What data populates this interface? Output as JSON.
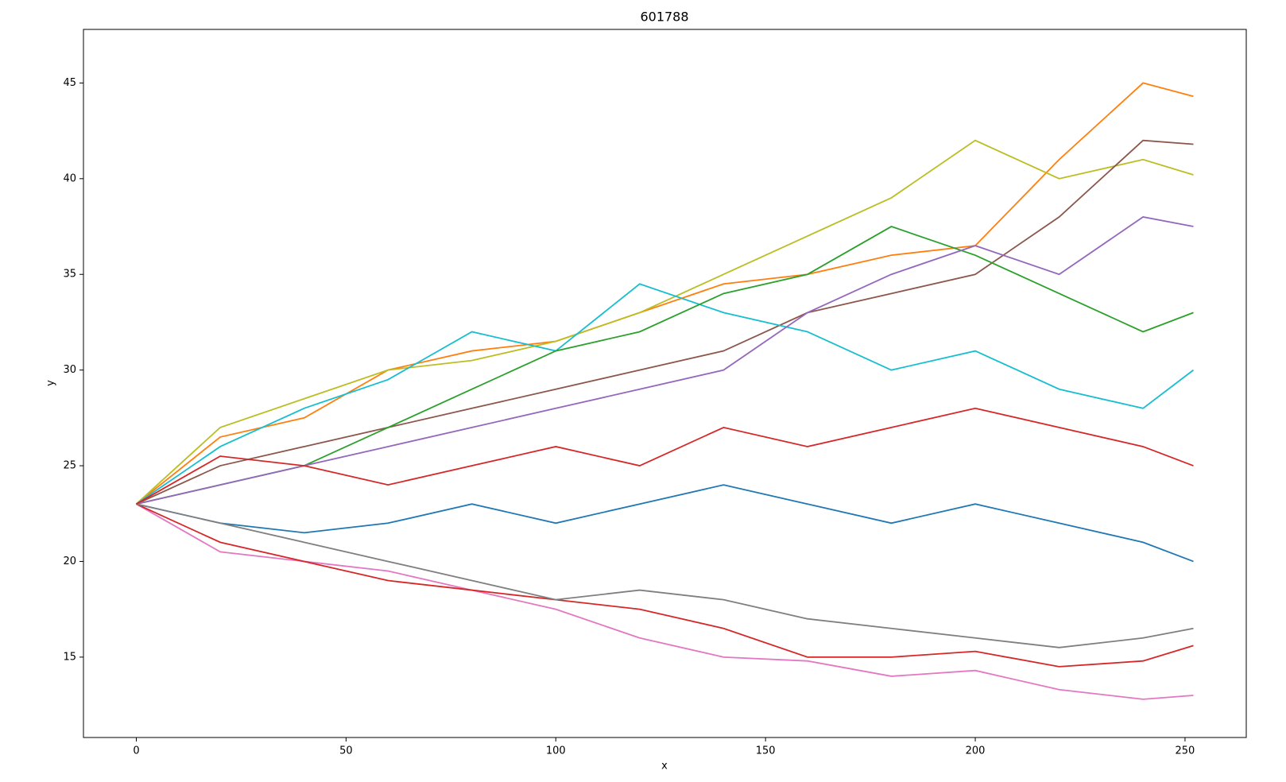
{
  "chart_data": {
    "type": "line",
    "title": "601788",
    "xlabel": "x",
    "ylabel": "y",
    "x": [
      0,
      20,
      40,
      60,
      80,
      100,
      120,
      140,
      160,
      180,
      200,
      220,
      240,
      252
    ],
    "series": [
      {
        "color": "#ff7f0e",
        "values": [
          23,
          26.5,
          27.5,
          30,
          31,
          31.5,
          33,
          34.5,
          35,
          36,
          36.5,
          41,
          45,
          44.3
        ]
      },
      {
        "color": "#bcbd22",
        "values": [
          23,
          27,
          28.5,
          30,
          30.5,
          31.5,
          33,
          35,
          37,
          39,
          42,
          40,
          41,
          40.2
        ]
      },
      {
        "color": "#8c564b",
        "values": [
          23,
          25,
          26,
          27,
          28,
          29,
          30,
          31,
          33,
          34,
          35,
          38,
          42,
          41.8
        ]
      },
      {
        "color": "#e377c2",
        "values": [
          23,
          20.5,
          20,
          19.5,
          18.5,
          17.5,
          16,
          15,
          14.8,
          14,
          14.3,
          13.3,
          12.8,
          13
        ]
      },
      {
        "color": "#d62728",
        "values": [
          23,
          21,
          20,
          19,
          18.5,
          18,
          17.5,
          16.5,
          15,
          15,
          15.3,
          14.5,
          14.8,
          15.6
        ]
      },
      {
        "color": "#17becf",
        "values": [
          23,
          26,
          28,
          29.5,
          32,
          31,
          34.5,
          33,
          32,
          30,
          31,
          29,
          28,
          30
        ]
      },
      {
        "color": "#1f77b4",
        "values": [
          23,
          22,
          21.5,
          22,
          23,
          22,
          23,
          24,
          23,
          22,
          23,
          22,
          21,
          20
        ]
      },
      {
        "color": "#2ca02c",
        "values": [
          23,
          24,
          25,
          27,
          29,
          31,
          32,
          34,
          35,
          37.5,
          36,
          34,
          32,
          33
        ]
      },
      {
        "color": "#9467bd",
        "values": [
          23,
          24,
          25,
          26,
          27,
          28,
          29,
          30,
          33,
          35,
          36.5,
          35,
          38,
          37.5
        ]
      },
      {
        "color": "#7f7f7f",
        "values": [
          23,
          22,
          21,
          20,
          19,
          18,
          18.5,
          18,
          17,
          16.5,
          16,
          15.5,
          16,
          16.5
        ]
      },
      {
        "color": "#d62728",
        "values": [
          23,
          25.5,
          25,
          24,
          25,
          26,
          25,
          27,
          26,
          27,
          28,
          27,
          26,
          25
        ]
      }
    ],
    "xlim": [
      -12.6,
      264.6
    ],
    "ylim": [
      10.8,
      47.8
    ],
    "xticks": [
      0,
      50,
      100,
      150,
      200,
      250
    ],
    "yticks": [
      15,
      20,
      25,
      30,
      35,
      40,
      45
    ],
    "grid": false
  }
}
